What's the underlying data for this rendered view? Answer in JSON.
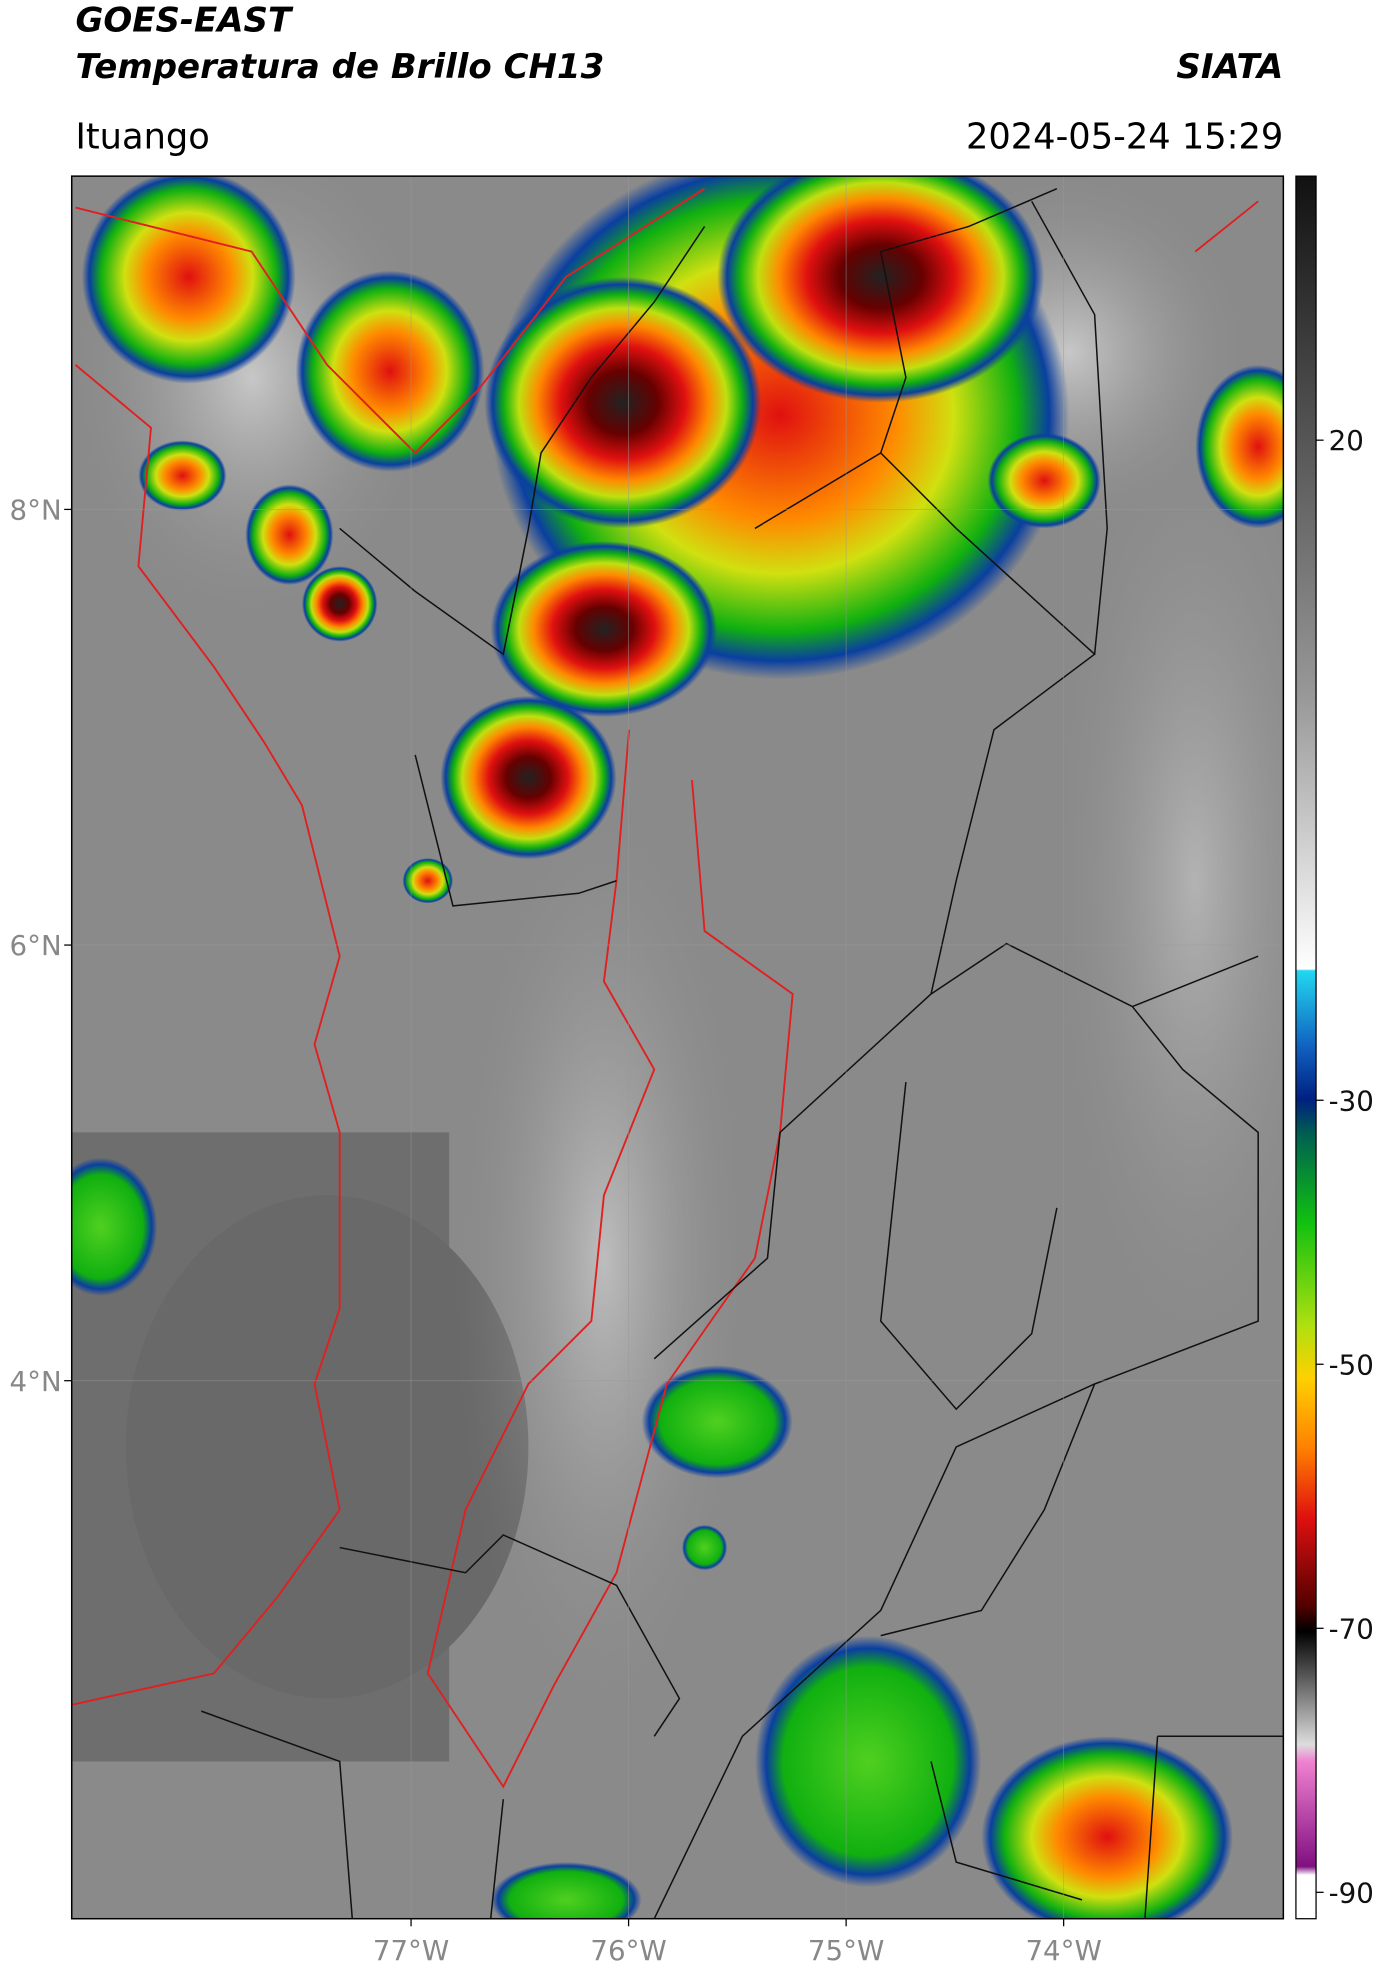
{
  "header": {
    "satellite": "GOES-EAST",
    "product": "Temperatura de Brillo CH13",
    "agency": "SIATA",
    "location": "Ituango",
    "datetime": "2024-05-24 15:29"
  },
  "map": {
    "xlim": [
      -78.56,
      -72.99
    ],
    "ylim": [
      1.53,
      9.53
    ],
    "xticks": [
      {
        "value": -77,
        "label": "77°W"
      },
      {
        "value": -76,
        "label": "76°W"
      },
      {
        "value": -75,
        "label": "75°W"
      },
      {
        "value": -74,
        "label": "74°W"
      }
    ],
    "yticks": [
      {
        "value": 8,
        "label": "8°N"
      },
      {
        "value": 6,
        "label": "6°N"
      },
      {
        "value": 4,
        "label": "4°N"
      }
    ]
  },
  "colorbar": {
    "lim": [
      -92,
      40
    ],
    "ticks": [
      20,
      -30,
      -50,
      -70,
      -90
    ]
  }
}
